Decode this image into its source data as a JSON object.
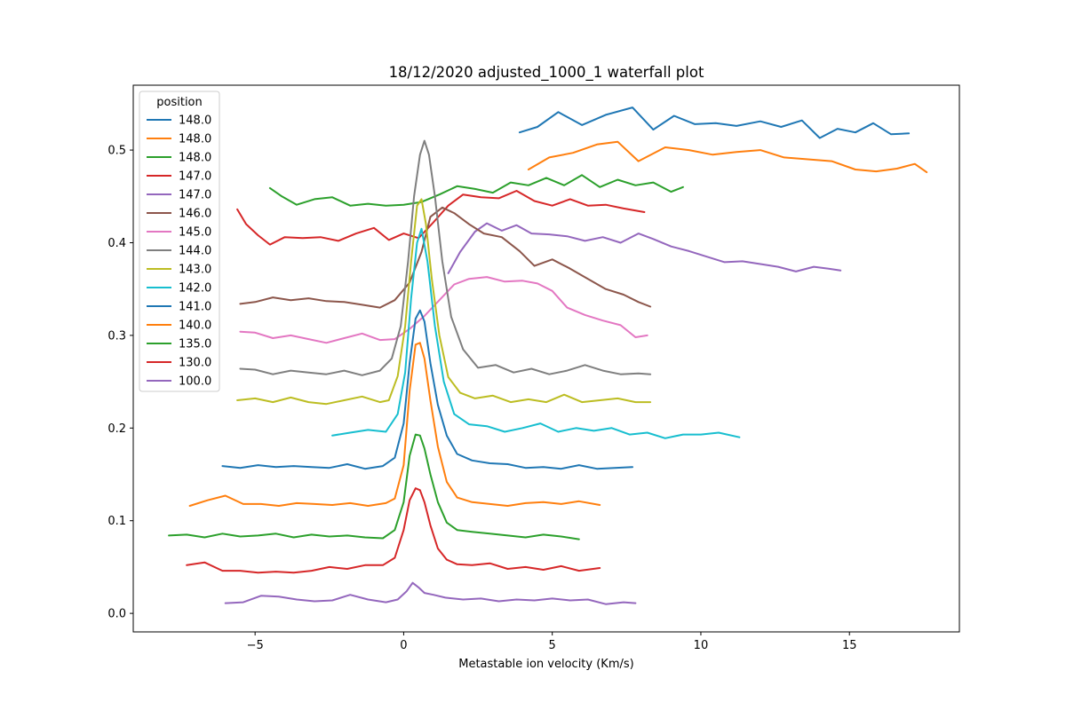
{
  "chart_data": {
    "type": "line",
    "title": "18/12/2020 adjusted_1000_1 waterfall plot",
    "xlabel": "Metastable ion velocity (Km/s)",
    "ylabel": "",
    "xlim": [
      -9.1,
      18.7
    ],
    "ylim": [
      -0.02,
      0.57
    ],
    "xticks": [
      -5,
      0,
      5,
      10,
      15
    ],
    "xtick_labels": [
      "−5",
      "0",
      "5",
      "10",
      "15"
    ],
    "yticks": [
      0.0,
      0.1,
      0.2,
      0.3,
      0.4,
      0.5
    ],
    "ytick_labels": [
      "0.0",
      "0.1",
      "0.2",
      "0.3",
      "0.4",
      "0.5"
    ],
    "grid": false,
    "legend": {
      "title": "position",
      "placement": "upper-left"
    },
    "series": [
      {
        "name": "148.0",
        "color": "#1f77b4",
        "x": [
          3.9,
          4.5,
          5.2,
          6.0,
          6.8,
          7.7,
          8.4,
          9.1,
          9.8,
          10.5,
          11.2,
          12.0,
          12.7,
          13.4,
          14.0,
          14.6,
          15.2,
          15.8,
          16.4,
          17.0
        ],
        "y": [
          0.519,
          0.525,
          0.541,
          0.527,
          0.538,
          0.546,
          0.522,
          0.537,
          0.528,
          0.529,
          0.526,
          0.531,
          0.525,
          0.532,
          0.513,
          0.523,
          0.519,
          0.529,
          0.517,
          0.518
        ]
      },
      {
        "name": "148.0",
        "color": "#ff7f0e",
        "x": [
          4.2,
          4.9,
          5.7,
          6.5,
          7.2,
          7.9,
          8.8,
          9.6,
          10.4,
          11.2,
          12.0,
          12.8,
          13.6,
          14.4,
          15.2,
          15.9,
          16.6,
          17.2,
          17.6
        ],
        "y": [
          0.479,
          0.492,
          0.497,
          0.506,
          0.509,
          0.488,
          0.503,
          0.5,
          0.495,
          0.498,
          0.5,
          0.492,
          0.49,
          0.488,
          0.479,
          0.477,
          0.48,
          0.485,
          0.476
        ]
      },
      {
        "name": "148.0",
        "color": "#2ca02c",
        "x": [
          -4.5,
          -4.1,
          -3.6,
          -3.0,
          -2.4,
          -1.8,
          -1.2,
          -0.6,
          0.0,
          0.6,
          1.2,
          1.8,
          2.4,
          3.0,
          3.6,
          4.2,
          4.8,
          5.4,
          6.0,
          6.6,
          7.2,
          7.8,
          8.4,
          9.0,
          9.4
        ],
        "y": [
          0.459,
          0.45,
          0.441,
          0.447,
          0.449,
          0.44,
          0.442,
          0.44,
          0.441,
          0.444,
          0.452,
          0.461,
          0.458,
          0.454,
          0.465,
          0.462,
          0.47,
          0.462,
          0.473,
          0.46,
          0.468,
          0.462,
          0.465,
          0.455,
          0.46
        ]
      },
      {
        "name": "147.0",
        "color": "#d62728",
        "x": [
          -5.6,
          -5.3,
          -4.9,
          -4.5,
          -4.0,
          -3.4,
          -2.8,
          -2.2,
          -1.6,
          -1.0,
          -0.5,
          0.0,
          0.5,
          1.0,
          1.5,
          2.0,
          2.6,
          3.2,
          3.8,
          4.4,
          5.0,
          5.6,
          6.2,
          6.8,
          7.4,
          8.1
        ],
        "y": [
          0.436,
          0.42,
          0.408,
          0.398,
          0.406,
          0.405,
          0.406,
          0.402,
          0.41,
          0.416,
          0.403,
          0.41,
          0.405,
          0.422,
          0.44,
          0.452,
          0.449,
          0.448,
          0.456,
          0.445,
          0.44,
          0.447,
          0.44,
          0.441,
          0.437,
          0.433
        ]
      },
      {
        "name": "147.0",
        "color": "#9467bd",
        "x": [
          1.5,
          1.9,
          2.4,
          2.8,
          3.3,
          3.8,
          4.3,
          4.9,
          5.5,
          6.1,
          6.7,
          7.3,
          7.9,
          8.4,
          9.0,
          9.6,
          10.2,
          10.8,
          11.4,
          12.0,
          12.6,
          13.2,
          13.8,
          14.3,
          14.7
        ],
        "y": [
          0.367,
          0.39,
          0.412,
          0.421,
          0.413,
          0.419,
          0.41,
          0.409,
          0.407,
          0.402,
          0.406,
          0.4,
          0.41,
          0.404,
          0.396,
          0.391,
          0.385,
          0.379,
          0.38,
          0.377,
          0.374,
          0.369,
          0.374,
          0.372,
          0.37
        ]
      },
      {
        "name": "146.0",
        "color": "#8c564b",
        "x": [
          -5.5,
          -5.0,
          -4.4,
          -3.8,
          -3.2,
          -2.6,
          -2.0,
          -1.4,
          -0.8,
          -0.3,
          0.2,
          0.6,
          0.9,
          1.3,
          1.7,
          2.2,
          2.7,
          3.3,
          3.9,
          4.4,
          5.0,
          5.6,
          6.2,
          6.8,
          7.4,
          7.9,
          8.3
        ],
        "y": [
          0.334,
          0.336,
          0.341,
          0.338,
          0.34,
          0.337,
          0.336,
          0.333,
          0.33,
          0.338,
          0.357,
          0.39,
          0.428,
          0.438,
          0.432,
          0.42,
          0.41,
          0.406,
          0.391,
          0.375,
          0.382,
          0.372,
          0.361,
          0.35,
          0.344,
          0.336,
          0.331
        ]
      },
      {
        "name": "145.0",
        "color": "#e377c2",
        "x": [
          -5.5,
          -5.0,
          -4.4,
          -3.8,
          -3.2,
          -2.6,
          -2.0,
          -1.4,
          -0.8,
          -0.3,
          0.2,
          0.7,
          1.2,
          1.7,
          2.2,
          2.8,
          3.4,
          4.0,
          4.5,
          5.0,
          5.5,
          6.1,
          6.7,
          7.3,
          7.8,
          8.2
        ],
        "y": [
          0.304,
          0.303,
          0.297,
          0.3,
          0.296,
          0.292,
          0.297,
          0.302,
          0.295,
          0.296,
          0.307,
          0.321,
          0.338,
          0.355,
          0.361,
          0.363,
          0.358,
          0.359,
          0.356,
          0.348,
          0.33,
          0.322,
          0.316,
          0.311,
          0.298,
          0.3
        ]
      },
      {
        "name": "144.0",
        "color": "#7f7f7f",
        "x": [
          -5.5,
          -5.0,
          -4.4,
          -3.8,
          -3.2,
          -2.6,
          -2.0,
          -1.4,
          -0.8,
          -0.4,
          -0.1,
          0.15,
          0.35,
          0.55,
          0.7,
          0.85,
          1.05,
          1.3,
          1.6,
          2.0,
          2.5,
          3.1,
          3.7,
          4.3,
          4.9,
          5.5,
          6.1,
          6.7,
          7.3,
          7.9,
          8.3
        ],
        "y": [
          0.264,
          0.263,
          0.258,
          0.262,
          0.26,
          0.258,
          0.262,
          0.257,
          0.262,
          0.275,
          0.31,
          0.38,
          0.45,
          0.495,
          0.51,
          0.495,
          0.45,
          0.38,
          0.32,
          0.285,
          0.265,
          0.268,
          0.26,
          0.264,
          0.258,
          0.262,
          0.268,
          0.262,
          0.258,
          0.259,
          0.258
        ]
      },
      {
        "name": "143.0",
        "color": "#bcbd22",
        "x": [
          -5.6,
          -5.0,
          -4.4,
          -3.8,
          -3.2,
          -2.6,
          -2.0,
          -1.4,
          -0.8,
          -0.5,
          -0.2,
          0.05,
          0.25,
          0.45,
          0.6,
          0.75,
          0.95,
          1.2,
          1.5,
          1.9,
          2.4,
          3.0,
          3.6,
          4.2,
          4.8,
          5.4,
          6.0,
          6.6,
          7.2,
          7.8,
          8.3
        ],
        "y": [
          0.23,
          0.232,
          0.228,
          0.233,
          0.228,
          0.226,
          0.23,
          0.234,
          0.228,
          0.23,
          0.256,
          0.31,
          0.38,
          0.44,
          0.447,
          0.42,
          0.36,
          0.3,
          0.255,
          0.238,
          0.232,
          0.235,
          0.228,
          0.231,
          0.228,
          0.236,
          0.228,
          0.23,
          0.232,
          0.228,
          0.228
        ]
      },
      {
        "name": "142.0",
        "color": "#17becf",
        "x": [
          -2.4,
          -1.8,
          -1.2,
          -0.6,
          -0.2,
          0.05,
          0.25,
          0.45,
          0.6,
          0.8,
          1.05,
          1.35,
          1.7,
          2.2,
          2.8,
          3.4,
          4.0,
          4.6,
          5.2,
          5.8,
          6.4,
          7.0,
          7.6,
          8.2,
          8.8,
          9.4,
          10.0,
          10.6,
          11.3
        ],
        "y": [
          0.192,
          0.195,
          0.198,
          0.196,
          0.215,
          0.26,
          0.34,
          0.4,
          0.415,
          0.38,
          0.31,
          0.25,
          0.215,
          0.204,
          0.202,
          0.196,
          0.2,
          0.205,
          0.196,
          0.2,
          0.197,
          0.2,
          0.193,
          0.195,
          0.189,
          0.193,
          0.193,
          0.195,
          0.19
        ]
      },
      {
        "name": "141.0",
        "color": "#1f77b4",
        "x": [
          -6.1,
          -5.5,
          -4.9,
          -4.3,
          -3.7,
          -3.1,
          -2.5,
          -1.9,
          -1.3,
          -0.7,
          -0.3,
          0.0,
          0.2,
          0.4,
          0.55,
          0.7,
          0.9,
          1.15,
          1.45,
          1.8,
          2.3,
          2.9,
          3.5,
          4.1,
          4.7,
          5.3,
          5.9,
          6.5,
          7.1,
          7.7
        ],
        "y": [
          0.159,
          0.157,
          0.16,
          0.158,
          0.159,
          0.158,
          0.157,
          0.161,
          0.156,
          0.159,
          0.168,
          0.205,
          0.27,
          0.318,
          0.327,
          0.315,
          0.27,
          0.225,
          0.192,
          0.172,
          0.165,
          0.162,
          0.161,
          0.157,
          0.158,
          0.156,
          0.16,
          0.156,
          0.157,
          0.158
        ]
      },
      {
        "name": "140.0",
        "color": "#ff7f0e",
        "x": [
          -7.2,
          -6.6,
          -6.0,
          -5.4,
          -4.8,
          -4.2,
          -3.6,
          -3.0,
          -2.4,
          -1.8,
          -1.2,
          -0.6,
          -0.3,
          0.0,
          0.2,
          0.4,
          0.55,
          0.7,
          0.9,
          1.15,
          1.45,
          1.8,
          2.3,
          2.9,
          3.5,
          4.1,
          4.7,
          5.3,
          5.9,
          6.6
        ],
        "y": [
          0.116,
          0.122,
          0.127,
          0.118,
          0.118,
          0.116,
          0.119,
          0.118,
          0.117,
          0.119,
          0.116,
          0.119,
          0.124,
          0.16,
          0.24,
          0.29,
          0.292,
          0.275,
          0.23,
          0.18,
          0.142,
          0.125,
          0.12,
          0.118,
          0.116,
          0.119,
          0.12,
          0.118,
          0.121,
          0.117
        ]
      },
      {
        "name": "135.0",
        "color": "#2ca02c",
        "x": [
          -7.9,
          -7.3,
          -6.7,
          -6.1,
          -5.5,
          -4.9,
          -4.3,
          -3.7,
          -3.1,
          -2.5,
          -1.9,
          -1.3,
          -0.7,
          -0.3,
          0.0,
          0.2,
          0.4,
          0.55,
          0.7,
          0.9,
          1.15,
          1.45,
          1.8,
          2.3,
          2.9,
          3.5,
          4.1,
          4.7,
          5.3,
          5.9
        ],
        "y": [
          0.084,
          0.085,
          0.082,
          0.086,
          0.083,
          0.084,
          0.086,
          0.082,
          0.085,
          0.083,
          0.084,
          0.082,
          0.081,
          0.09,
          0.12,
          0.17,
          0.193,
          0.192,
          0.178,
          0.15,
          0.12,
          0.098,
          0.09,
          0.088,
          0.086,
          0.084,
          0.082,
          0.085,
          0.083,
          0.08
        ]
      },
      {
        "name": "130.0",
        "color": "#d62728",
        "x": [
          -7.3,
          -6.7,
          -6.1,
          -5.5,
          -4.9,
          -4.3,
          -3.7,
          -3.1,
          -2.5,
          -1.9,
          -1.3,
          -0.7,
          -0.3,
          0.0,
          0.2,
          0.4,
          0.55,
          0.7,
          0.9,
          1.15,
          1.45,
          1.8,
          2.3,
          2.9,
          3.5,
          4.1,
          4.7,
          5.3,
          5.9,
          6.6
        ],
        "y": [
          0.052,
          0.055,
          0.046,
          0.046,
          0.044,
          0.045,
          0.044,
          0.046,
          0.05,
          0.048,
          0.052,
          0.052,
          0.06,
          0.09,
          0.122,
          0.135,
          0.133,
          0.12,
          0.095,
          0.07,
          0.058,
          0.053,
          0.052,
          0.054,
          0.048,
          0.05,
          0.047,
          0.051,
          0.046,
          0.049
        ]
      },
      {
        "name": "100.0",
        "color": "#9467bd",
        "x": [
          -6.0,
          -5.4,
          -4.8,
          -4.2,
          -3.6,
          -3.0,
          -2.4,
          -1.8,
          -1.2,
          -0.6,
          -0.2,
          0.1,
          0.3,
          0.5,
          0.7,
          1.0,
          1.4,
          2.0,
          2.6,
          3.2,
          3.8,
          4.4,
          5.0,
          5.6,
          6.2,
          6.8,
          7.4,
          7.8
        ],
        "y": [
          0.011,
          0.012,
          0.019,
          0.018,
          0.015,
          0.013,
          0.014,
          0.02,
          0.015,
          0.012,
          0.015,
          0.024,
          0.033,
          0.028,
          0.022,
          0.02,
          0.017,
          0.015,
          0.016,
          0.013,
          0.015,
          0.014,
          0.016,
          0.014,
          0.015,
          0.01,
          0.012,
          0.011
        ]
      }
    ]
  }
}
